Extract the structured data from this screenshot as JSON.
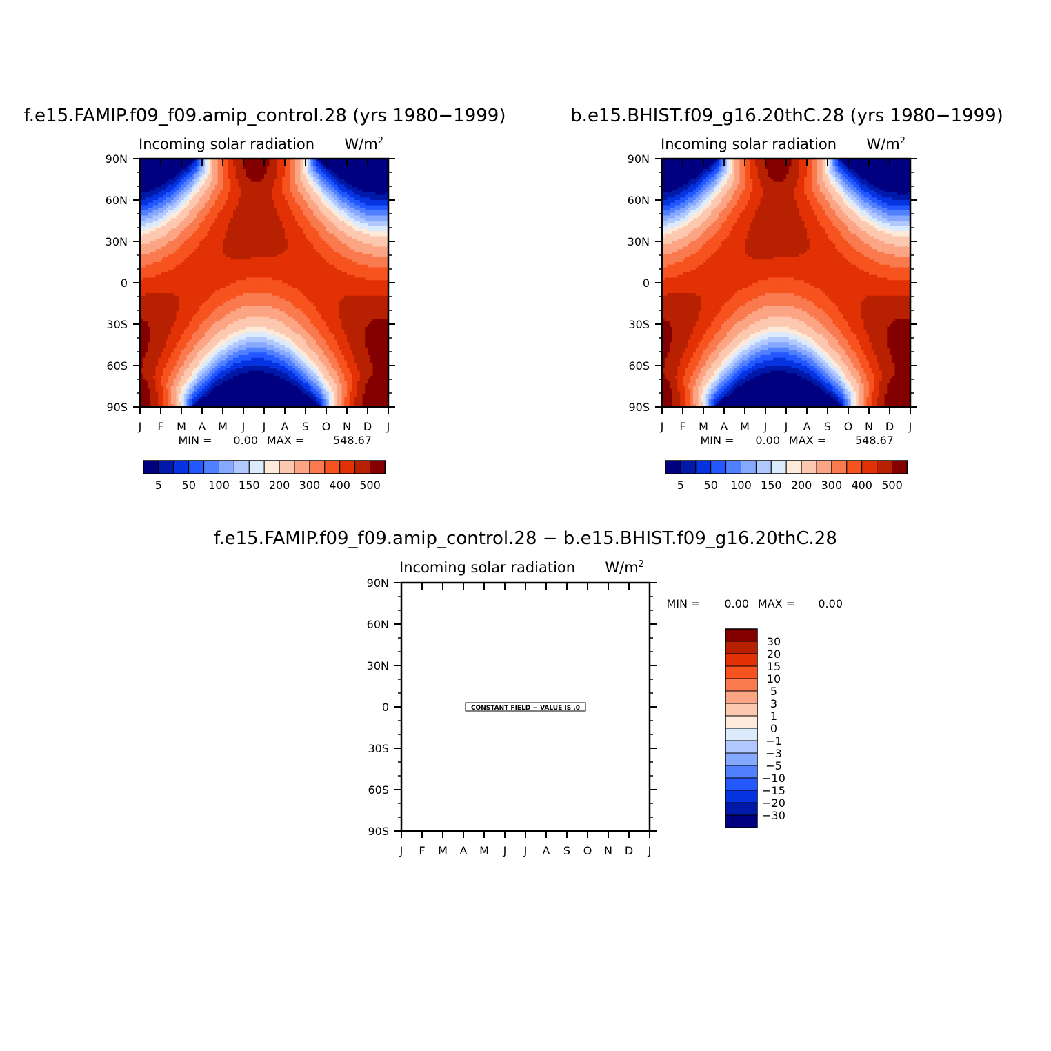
{
  "colors": {
    "fill_levels_absolute": [
      "#000080",
      "#0019a8",
      "#0533e0",
      "#2357ff",
      "#5180ff",
      "#86a8ff",
      "#b0c8ff",
      "#dcebfc",
      "#fdeadb",
      "#fcc8b0",
      "#fca585",
      "#fa7a4f",
      "#f7531e",
      "#e23104",
      "#b82002",
      "#840000"
    ],
    "fill_levels_difference": [
      "#000080",
      "#0019a8",
      "#0533e0",
      "#2357ff",
      "#5180ff",
      "#86a8ff",
      "#b0c8ff",
      "#dcebfc",
      "#fdeadb",
      "#fcc8b0",
      "#fca585",
      "#fa7a4f",
      "#f7531e",
      "#e23104",
      "#b82002",
      "#840000"
    ]
  },
  "chart_data": [
    {
      "type": "heatmap",
      "title": "f.e15.FAMIP.f09_f09.amip_control.28 (yrs 1980−1999)",
      "subtitle_left": "Incoming solar radiation",
      "subtitle_right": "W/m",
      "subtitle_right_sup": "2",
      "x_tick_labels": [
        "J",
        "F",
        "M",
        "A",
        "M",
        "J",
        "J",
        "A",
        "S",
        "O",
        "N",
        "D",
        "J"
      ],
      "y_tick_labels": [
        "90N",
        "60N",
        "30N",
        "0",
        "30S",
        "60S",
        "90S"
      ],
      "y_values": [
        90,
        60,
        30,
        0,
        -30,
        -60,
        -90
      ],
      "min_label": "MIN =",
      "min_value": "0.00",
      "max_label": "MAX =",
      "max_value": "548.67",
      "min": 0.0,
      "max": 548.67,
      "colorbar_levels": [
        "5",
        "50",
        "100",
        "150",
        "200",
        "300",
        "400",
        "500"
      ],
      "contour_levels": [
        5,
        25,
        50,
        75,
        100,
        125,
        150,
        175,
        200,
        250,
        300,
        350,
        400,
        450,
        500
      ]
    },
    {
      "type": "heatmap",
      "title": "b.e15.BHIST.f09_g16.20thC.28 (yrs 1980−1999)",
      "subtitle_left": "Incoming solar radiation",
      "subtitle_right": "W/m",
      "subtitle_right_sup": "2",
      "x_tick_labels": [
        "J",
        "F",
        "M",
        "A",
        "M",
        "J",
        "J",
        "A",
        "S",
        "O",
        "N",
        "D",
        "J"
      ],
      "y_tick_labels": [
        "90N",
        "60N",
        "30N",
        "0",
        "30S",
        "60S",
        "90S"
      ],
      "y_values": [
        90,
        60,
        30,
        0,
        -30,
        -60,
        -90
      ],
      "min_label": "MIN =",
      "min_value": "0.00",
      "max_label": "MAX =",
      "max_value": "548.67",
      "min": 0.0,
      "max": 548.67,
      "colorbar_levels": [
        "5",
        "50",
        "100",
        "150",
        "200",
        "300",
        "400",
        "500"
      ],
      "contour_levels": [
        5,
        25,
        50,
        75,
        100,
        125,
        150,
        175,
        200,
        250,
        300,
        350,
        400,
        450,
        500
      ]
    },
    {
      "type": "heatmap",
      "title": "f.e15.FAMIP.f09_f09.amip_control.28 − b.e15.BHIST.f09_g16.20thC.28",
      "subtitle_left": "Incoming solar radiation",
      "subtitle_right": "W/m",
      "subtitle_right_sup": "2",
      "x_tick_labels": [
        "J",
        "F",
        "M",
        "A",
        "M",
        "J",
        "J",
        "A",
        "S",
        "O",
        "N",
        "D",
        "J"
      ],
      "y_tick_labels": [
        "90N",
        "60N",
        "30N",
        "0",
        "30S",
        "60S",
        "90S"
      ],
      "y_values": [
        90,
        60,
        30,
        0,
        -30,
        -60,
        -90
      ],
      "min_label": "MIN =",
      "min_value": "0.00",
      "max_label": "MAX =",
      "max_value": "0.00",
      "min": 0.0,
      "max": 0.0,
      "constant_field_note": "CONSTANT FIELD − VALUE IS .0",
      "colorbar_levels": [
        "30",
        "20",
        "15",
        "10",
        "5",
        "3",
        "1",
        "0",
        "−1",
        "−3",
        "−5",
        "−10",
        "−15",
        "−20",
        "−30"
      ]
    }
  ]
}
